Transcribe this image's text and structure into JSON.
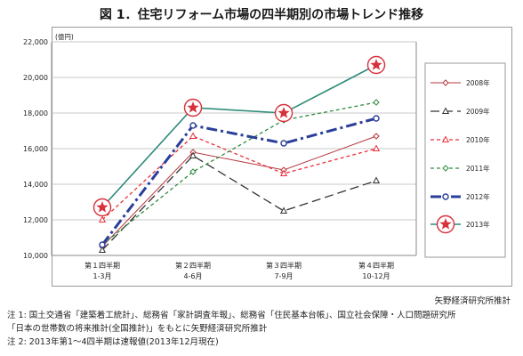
{
  "figure_title": "図 1．住宅リフォーム市場の四半期別の市場トレンド推移",
  "source": "矢野経済研究所推計",
  "notes": {
    "line1": "注 1: 国土交通省「建築着工統計」、総務省「家計調査年報」、総務省「住民基本台帳」、国立社会保障・人口問題研究所",
    "line2": "「日本の世帯数の将来推計(全国推計)」をもとに矢野経済研究所推計",
    "line3": "注 2: 2013年第1～4四半期は速報値(2013年12月現在)"
  },
  "chart_data": {
    "type": "line",
    "unit_label": "(億円)",
    "ylim": [
      10000,
      22000
    ],
    "yticks": [
      10000,
      12000,
      14000,
      16000,
      18000,
      20000,
      22000
    ],
    "ytick_labels": [
      "10,000",
      "12,000",
      "14,000",
      "16,000",
      "18,000",
      "20,000",
      "22,000"
    ],
    "categories": [
      {
        "line1": "第１四半期",
        "line2": "1-3月"
      },
      {
        "line1": "第２四半期",
        "line2": "4-6月"
      },
      {
        "line1": "第３四半期",
        "line2": "7-9月"
      },
      {
        "line1": "第４四半期",
        "line2": "10-12月"
      }
    ],
    "grid": "horizontal",
    "legend_position": "right",
    "series": [
      {
        "name": "2008年",
        "values": [
          10500,
          15800,
          14800,
          16700
        ],
        "color": "#b5363c",
        "dash": "",
        "width": 1,
        "marker": "diamond"
      },
      {
        "name": "2009年",
        "values": [
          10300,
          15600,
          12500,
          14200
        ],
        "color": "#333333",
        "dash": "10,5",
        "width": 1.3,
        "marker": "triangle"
      },
      {
        "name": "2010年",
        "values": [
          12000,
          16700,
          14600,
          16000
        ],
        "color": "#e8303a",
        "dash": "4,3",
        "width": 1.3,
        "marker": "triangle"
      },
      {
        "name": "2011年",
        "values": [
          10600,
          14700,
          17600,
          18600
        ],
        "color": "#2e8b3e",
        "dash": "4,3",
        "width": 1.3,
        "marker": "diamond"
      },
      {
        "name": "2012年",
        "values": [
          10600,
          17300,
          16300,
          17700
        ],
        "color": "#2a3f9a",
        "dash": "12,4,3,4",
        "width": 3,
        "marker": "circle"
      },
      {
        "name": "2013年",
        "values": [
          12700,
          18300,
          18000,
          20700
        ],
        "color": "#2e8b7a",
        "dash": "",
        "width": 1.6,
        "marker": "star"
      }
    ]
  }
}
